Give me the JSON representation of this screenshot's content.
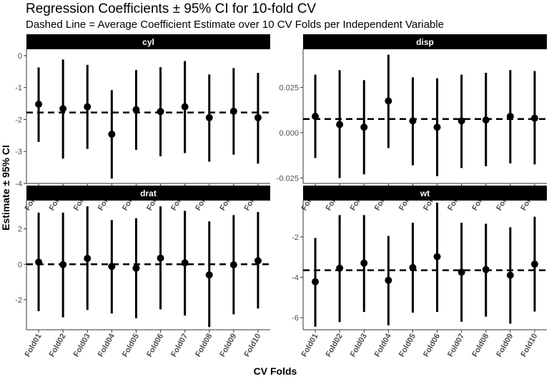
{
  "chart_data": {
    "type": "scatter",
    "title": "Regression Coefficients ± 95% CI for 10-fold CV",
    "subtitle": "Dashed Line = Average Coefficient Estimate over 10 CV Folds per Independent Variable",
    "xlabel": "CV Folds",
    "ylabel": "Estimate ± 95% CI",
    "categories": [
      "Fold01",
      "Fold02",
      "Fold03",
      "Fold04",
      "Fold05",
      "Fold06",
      "Fold07",
      "Fold08",
      "Fold09",
      "Fold10"
    ],
    "colors": {
      "strip_bg": "#000000",
      "strip_text": "#ffffff",
      "point": "#000000",
      "axis": "#333333",
      "tick_text": "#4d4d4d"
    },
    "panels": [
      {
        "name": "cyl",
        "ylim": [
          -4,
          0.2
        ],
        "yticks": [
          0,
          -1,
          -2,
          -3,
          -4
        ],
        "ytick_labels": [
          "0",
          "-1",
          "-2",
          "-3",
          "-4"
        ],
        "mean": -1.78,
        "estimates": [
          -1.52,
          -1.66,
          -1.6,
          -2.46,
          -1.69,
          -1.75,
          -1.6,
          -1.94,
          -1.74,
          -1.94
        ],
        "lower": [
          -2.7,
          -3.22,
          -2.92,
          -3.85,
          -2.95,
          -3.15,
          -3.05,
          -3.32,
          -3.1,
          -3.38
        ],
        "upper": [
          -0.37,
          -0.12,
          -0.29,
          -1.08,
          -0.45,
          -0.36,
          -0.17,
          -0.59,
          -0.39,
          -0.54
        ]
      },
      {
        "name": "disp",
        "ylim": [
          -0.028,
          0.046
        ],
        "yticks": [
          0.025,
          0.0,
          -0.025
        ],
        "ytick_labels": [
          "0.025",
          "0.000",
          "-0.025"
        ],
        "mean": 0.0075,
        "estimates": [
          0.009,
          0.0045,
          0.003,
          0.0175,
          0.0065,
          0.003,
          0.0065,
          0.007,
          0.009,
          0.008
        ],
        "lower": [
          -0.014,
          -0.025,
          -0.023,
          -0.0085,
          -0.018,
          -0.024,
          -0.0195,
          -0.0185,
          -0.017,
          -0.0175
        ],
        "upper": [
          0.032,
          0.0345,
          0.029,
          0.043,
          0.0305,
          0.03,
          0.032,
          0.033,
          0.0345,
          0.034
        ]
      },
      {
        "name": "drat",
        "ylim": [
          -3.7,
          3.6
        ],
        "yticks": [
          2,
          0,
          -2
        ],
        "ytick_labels": [
          "2",
          "0",
          "-2"
        ],
        "mean": 0.0,
        "estimates": [
          0.12,
          -0.02,
          0.33,
          -0.12,
          -0.22,
          0.35,
          0.08,
          -0.6,
          -0.03,
          0.2
        ],
        "lower": [
          -2.65,
          -3.0,
          -2.58,
          -2.78,
          -3.05,
          -2.55,
          -2.9,
          -3.55,
          -2.83,
          -2.5
        ],
        "upper": [
          2.92,
          2.92,
          3.27,
          2.5,
          2.6,
          3.27,
          3.02,
          2.42,
          2.78,
          2.95
        ]
      },
      {
        "name": "wt",
        "ylim": [
          -6.6,
          -0.2
        ],
        "yticks": [
          -2,
          -4,
          -6
        ],
        "ytick_labels": [
          "-2",
          "-4",
          "-6"
        ],
        "mean": -3.65,
        "estimates": [
          -4.22,
          -3.55,
          -3.3,
          -4.15,
          -3.52,
          -2.98,
          -3.75,
          -3.62,
          -3.9,
          -3.35
        ],
        "lower": [
          -6.45,
          -6.22,
          -5.72,
          -6.38,
          -5.75,
          -5.72,
          -6.2,
          -5.95,
          -6.3,
          -5.7
        ],
        "upper": [
          -2.05,
          -0.92,
          -0.92,
          -1.95,
          -1.3,
          -0.3,
          -1.3,
          -1.35,
          -1.52,
          -1.0
        ]
      }
    ]
  }
}
